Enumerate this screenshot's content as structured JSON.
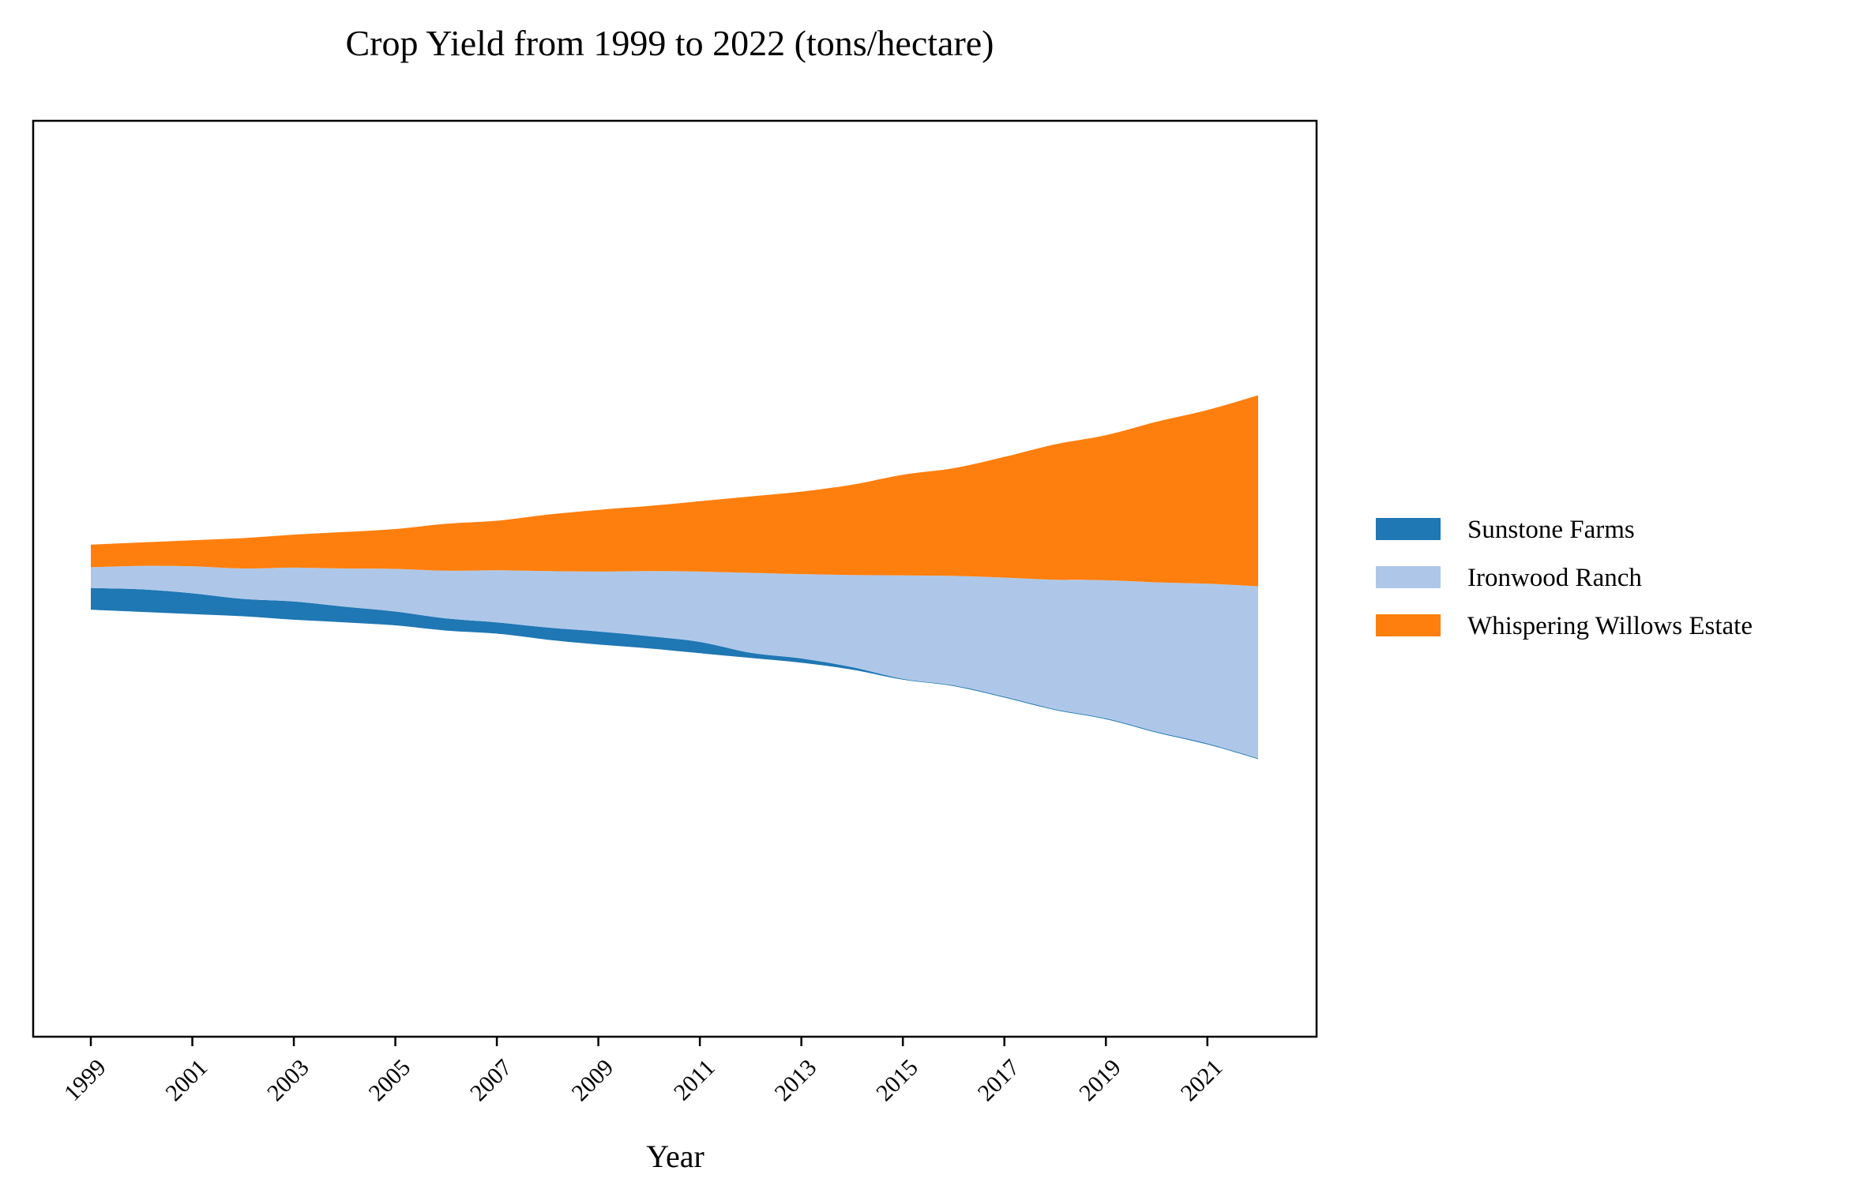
{
  "chart_data": {
    "type": "area",
    "stacked": true,
    "baseline": "symmetric",
    "title": "Crop Yield from 1999 to 2022 (tons/hectare)",
    "xlabel": "Year",
    "ylabel": "",
    "x": [
      1999,
      2000,
      2001,
      2002,
      2003,
      2004,
      2005,
      2006,
      2007,
      2008,
      2009,
      2010,
      2011,
      2012,
      2013,
      2014,
      2015,
      2016,
      2017,
      2018,
      2019,
      2020,
      2021,
      2022
    ],
    "xticks": [
      "1999",
      "2001",
      "2003",
      "2005",
      "2007",
      "2009",
      "2011",
      "2013",
      "2015",
      "2017",
      "2019",
      "2021"
    ],
    "yticks_visible": false,
    "grid": false,
    "legend_position": "right",
    "series": [
      {
        "name": "Sunstone Farms",
        "color": "#1f77b4",
        "values": [
          2.5,
          2.6,
          2.4,
          2.0,
          2.1,
          1.8,
          1.6,
          1.4,
          1.3,
          1.4,
          1.5,
          1.4,
          1.3,
          0.6,
          0.5,
          0.3,
          0.1,
          0.1,
          0.1,
          0.1,
          0.1,
          0.1,
          0.1,
          0.1
        ]
      },
      {
        "name": "Ironwood Ranch",
        "color": "#aec7e8",
        "values": [
          2.4,
          2.7,
          3.1,
          3.5,
          3.9,
          4.4,
          4.9,
          5.5,
          6.0,
          6.5,
          6.9,
          7.5,
          8.1,
          9.2,
          9.7,
          10.6,
          11.9,
          12.6,
          13.7,
          14.9,
          15.9,
          17.2,
          18.4,
          19.8
        ]
      },
      {
        "name": "Whispering Willows Estate",
        "color": "#ff7f0e",
        "values": [
          2.6,
          2.7,
          3.0,
          3.5,
          3.8,
          4.2,
          4.6,
          5.4,
          5.7,
          6.5,
          7.1,
          7.5,
          8.1,
          8.8,
          9.5,
          10.4,
          11.6,
          12.4,
          13.9,
          15.6,
          16.7,
          18.5,
          20.0,
          22.0
        ]
      }
    ]
  }
}
